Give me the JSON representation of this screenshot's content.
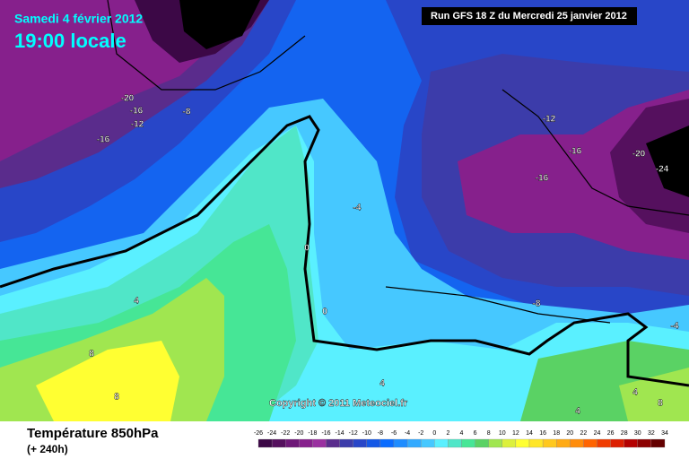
{
  "header": {
    "date": "Samedi 4 février 2012",
    "time": "19:00 locale",
    "run": "Run GFS 18 Z du Mercredi 25 janvier 2012"
  },
  "copyright": "Copyright © 2011 Meteociel.fr",
  "footer": {
    "title": "Température 850hPa",
    "lead": "(+ 240h)"
  },
  "scale": {
    "values": [
      -26,
      -24,
      -22,
      -20,
      -18,
      -16,
      -14,
      -12,
      -10,
      -8,
      -6,
      -4,
      -2,
      0,
      2,
      4,
      6,
      8,
      10,
      12,
      14,
      16,
      18,
      20,
      22,
      24,
      26,
      28,
      30,
      32,
      34
    ],
    "colors": [
      "#3c0846",
      "#55105e",
      "#6e1878",
      "#86208c",
      "#9a30a0",
      "#5a2c8c",
      "#3c3caa",
      "#2846c8",
      "#1458e6",
      "#0a6cff",
      "#1e8cff",
      "#32aaff",
      "#46c8ff",
      "#5af0ff",
      "#50e6c8",
      "#46e696",
      "#5ad264",
      "#a0e650",
      "#dcf03c",
      "#ffff32",
      "#ffe628",
      "#ffc81e",
      "#ffaa14",
      "#ff8c0a",
      "#ff6400",
      "#f03c00",
      "#dc1e00",
      "#b40000",
      "#8c0000",
      "#640000",
      "#000000"
    ]
  },
  "map_labels": [
    -20,
    -16,
    -12,
    -8,
    -16,
    -4,
    0,
    0,
    4,
    8,
    8,
    -12,
    -16,
    -16,
    -20,
    -24,
    -8,
    -4,
    4,
    4,
    4,
    8
  ]
}
